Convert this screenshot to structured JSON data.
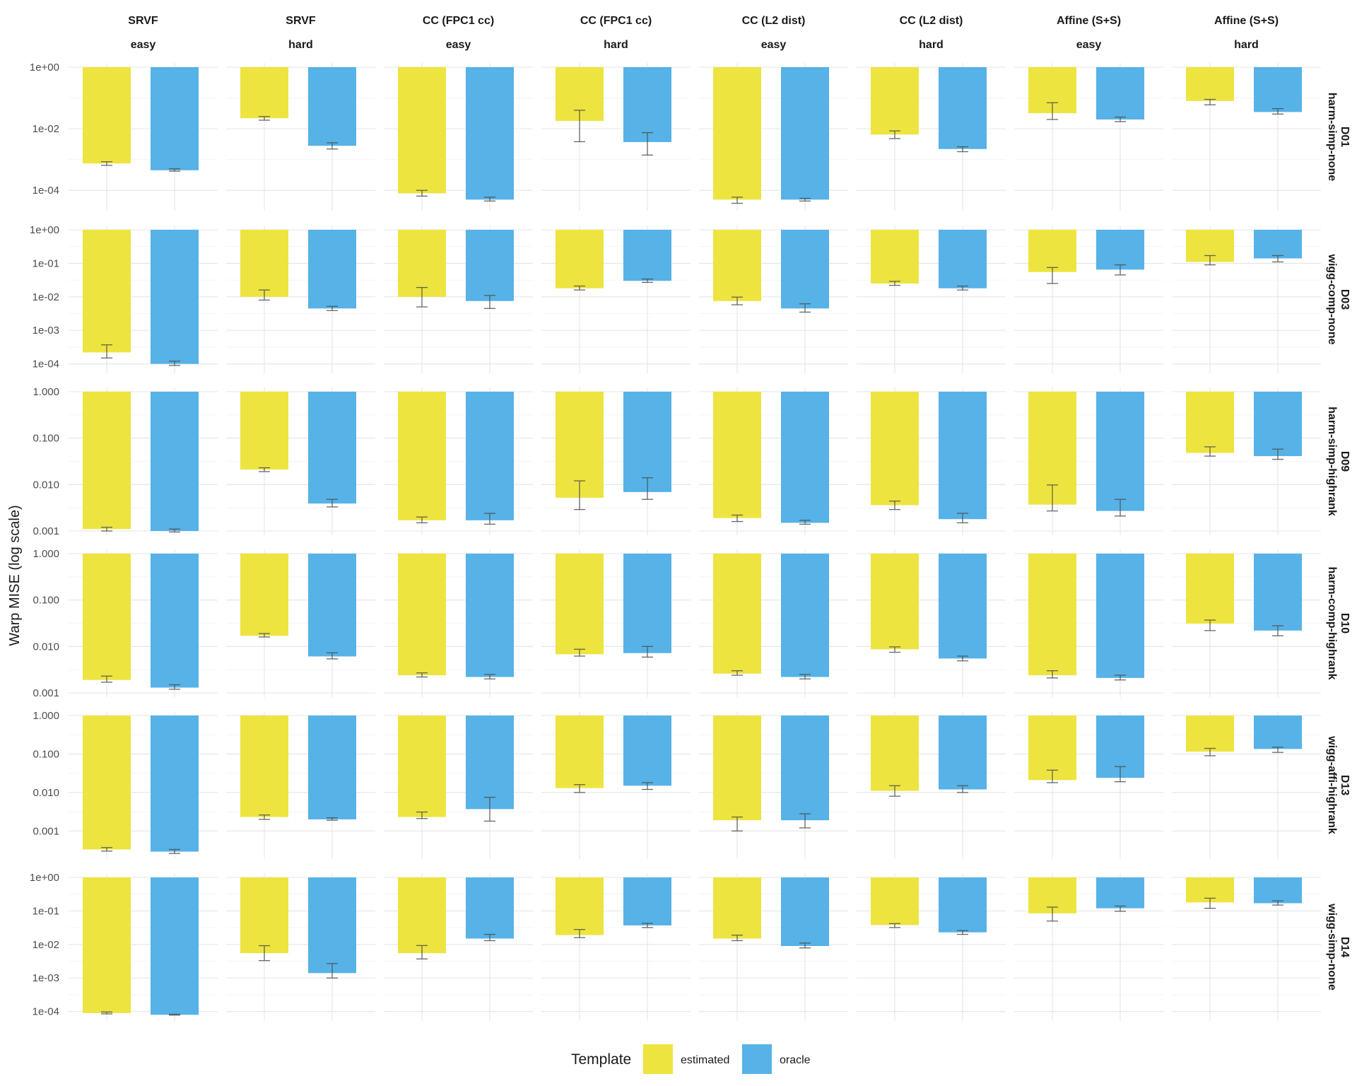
{
  "chart_data": {
    "type": "bar",
    "ylabel": "Warp MISE (log scale)",
    "yscale": "log",
    "grid": true,
    "legend": {
      "title": "Template",
      "position": "bottom",
      "entries": [
        {
          "name": "estimated",
          "color": "#EDE43F"
        },
        {
          "name": "oracle",
          "color": "#56B2E7"
        }
      ]
    },
    "columns": [
      {
        "method": "SRVF",
        "difficulty": "easy"
      },
      {
        "method": "SRVF",
        "difficulty": "hard"
      },
      {
        "method": "CC (FPC1 cc)",
        "difficulty": "easy"
      },
      {
        "method": "CC (FPC1 cc)",
        "difficulty": "hard"
      },
      {
        "method": "CC (L2 dist)",
        "difficulty": "easy"
      },
      {
        "method": "CC (L2 dist)",
        "difficulty": "hard"
      },
      {
        "method": "Affine (S+S)",
        "difficulty": "easy"
      },
      {
        "method": "Affine (S+S)",
        "difficulty": "hard"
      }
    ],
    "rows": [
      {
        "id": "D01",
        "label": "harm-simp-none",
        "ylim": [
          3e-05,
          1
        ],
        "ticks": [
          1,
          0.01,
          0.0001
        ],
        "tick_labels": [
          "1e+00",
          "1e-02",
          "1e-04"
        ],
        "estimated": [
          0.00075,
          0.022,
          8e-05,
          0.018,
          5e-05,
          0.0065,
          0.032,
          0.08
        ],
        "estimated_err": [
          [
            0.00065,
            0.00085
          ],
          [
            0.019,
            0.025
          ],
          [
            6.5e-05,
            0.0001
          ],
          [
            0.0038,
            0.04
          ],
          [
            3.8e-05,
            6e-05
          ],
          [
            0.0048,
            0.0085
          ],
          [
            0.02,
            0.07
          ],
          [
            0.06,
            0.09
          ]
        ],
        "oracle": [
          0.00045,
          0.0028,
          5e-05,
          0.0037,
          5e-05,
          0.0022,
          0.02,
          0.035
        ],
        "oracle_err": [
          [
            0.00042,
            0.0005
          ],
          [
            0.0022,
            0.0035
          ],
          [
            4.5e-05,
            6e-05
          ],
          [
            0.0014,
            0.0075
          ],
          [
            4.5e-05,
            5.5e-05
          ],
          [
            0.0018,
            0.0026
          ],
          [
            0.017,
            0.024
          ],
          [
            0.03,
            0.045
          ]
        ]
      },
      {
        "id": "D03",
        "label": "wigg-comp-none",
        "ylim": [
          7e-05,
          1
        ],
        "ticks": [
          1,
          0.1,
          0.01,
          0.001,
          0.0001
        ],
        "tick_labels": [
          "1e+00",
          "1e-01",
          "1e-02",
          "1e-03",
          "1e-04"
        ],
        "estimated": [
          0.00022,
          0.01,
          0.01,
          0.018,
          0.0075,
          0.025,
          0.055,
          0.11
        ],
        "estimated_err": [
          [
            0.00015,
            0.00037
          ],
          [
            0.008,
            0.016
          ],
          [
            0.005,
            0.019
          ],
          [
            0.016,
            0.021
          ],
          [
            0.0058,
            0.0098
          ],
          [
            0.022,
            0.029
          ],
          [
            0.025,
            0.075
          ],
          [
            0.09,
            0.17
          ]
        ],
        "oracle": [
          0.0001,
          0.0045,
          0.0075,
          0.03,
          0.0045,
          0.018,
          0.065,
          0.14
        ],
        "oracle_err": [
          [
            9e-05,
            0.00012
          ],
          [
            0.0039,
            0.0052
          ],
          [
            0.0045,
            0.011
          ],
          [
            0.027,
            0.034
          ],
          [
            0.0035,
            0.0062
          ],
          [
            0.016,
            0.021
          ],
          [
            0.045,
            0.09
          ],
          [
            0.11,
            0.17
          ]
        ]
      },
      {
        "id": "D09",
        "label": "harm-simp-highrank",
        "ylim": [
          0.001,
          1
        ],
        "ticks": [
          1,
          0.1,
          0.01,
          0.001
        ],
        "tick_labels": [
          "1.000",
          "0.100",
          "0.010",
          "0.001"
        ],
        "estimated": [
          0.0011,
          0.021,
          0.0017,
          0.0052,
          0.0019,
          0.0036,
          0.0037,
          0.048
        ],
        "estimated_err": [
          [
            0.001,
            0.0012
          ],
          [
            0.019,
            0.023
          ],
          [
            0.0015,
            0.002
          ],
          [
            0.0029,
            0.012
          ],
          [
            0.0016,
            0.0022
          ],
          [
            0.0029,
            0.0044
          ],
          [
            0.0027,
            0.0098
          ],
          [
            0.041,
            0.065
          ]
        ],
        "oracle": [
          0.001,
          0.0039,
          0.0017,
          0.0069,
          0.0015,
          0.0018,
          0.0027,
          0.041
        ],
        "oracle_err": [
          [
            0.00095,
            0.0011
          ],
          [
            0.0033,
            0.0048
          ],
          [
            0.0014,
            0.0024
          ],
          [
            0.0048,
            0.014
          ],
          [
            0.0014,
            0.0017
          ],
          [
            0.0015,
            0.0024
          ],
          [
            0.0021,
            0.0048
          ],
          [
            0.035,
            0.058
          ]
        ]
      },
      {
        "id": "D10",
        "label": "harm-comp-highrank",
        "ylim": [
          0.001,
          1
        ],
        "ticks": [
          1,
          0.1,
          0.01,
          0.001
        ],
        "tick_labels": [
          "1.000",
          "0.100",
          "0.010",
          "0.001"
        ],
        "estimated": [
          0.0019,
          0.017,
          0.0024,
          0.0068,
          0.0026,
          0.0087,
          0.0024,
          0.031
        ],
        "estimated_err": [
          [
            0.0017,
            0.0023
          ],
          [
            0.016,
            0.019
          ],
          [
            0.0022,
            0.0027
          ],
          [
            0.0062,
            0.0087
          ],
          [
            0.0024,
            0.003
          ],
          [
            0.0075,
            0.0098
          ],
          [
            0.0021,
            0.003
          ],
          [
            0.022,
            0.037
          ]
        ],
        "oracle": [
          0.0013,
          0.0061,
          0.0022,
          0.0072,
          0.0022,
          0.0055,
          0.0021,
          0.022
        ],
        "oracle_err": [
          [
            0.0012,
            0.0015
          ],
          [
            0.0054,
            0.0073
          ],
          [
            0.002,
            0.0025
          ],
          [
            0.0059,
            0.01
          ],
          [
            0.002,
            0.0025
          ],
          [
            0.0049,
            0.0062
          ],
          [
            0.0019,
            0.0024
          ],
          [
            0.017,
            0.028
          ]
        ]
      },
      {
        "id": "D13",
        "label": "wigg-affi-highrank",
        "ylim": [
          0.00024,
          1
        ],
        "ticks": [
          1,
          0.1,
          0.01,
          0.001
        ],
        "tick_labels": [
          "1.000",
          "0.100",
          "0.010",
          "0.001"
        ],
        "estimated": [
          0.00033,
          0.0023,
          0.0023,
          0.013,
          0.0019,
          0.011,
          0.021,
          0.115
        ],
        "estimated_err": [
          [
            0.0003,
            0.00037
          ],
          [
            0.002,
            0.0026
          ],
          [
            0.0021,
            0.0031
          ],
          [
            0.01,
            0.016
          ],
          [
            0.001,
            0.0023
          ],
          [
            0.008,
            0.015
          ],
          [
            0.018,
            0.038
          ],
          [
            0.09,
            0.14
          ]
        ],
        "oracle": [
          0.00029,
          0.002,
          0.0037,
          0.015,
          0.0019,
          0.012,
          0.024,
          0.135
        ],
        "oracle_err": [
          [
            0.00026,
            0.00033
          ],
          [
            0.0019,
            0.0022
          ],
          [
            0.0018,
            0.0075
          ],
          [
            0.012,
            0.018
          ],
          [
            0.0012,
            0.0028
          ],
          [
            0.01,
            0.015
          ],
          [
            0.019,
            0.047
          ],
          [
            0.11,
            0.15
          ]
        ]
      },
      {
        "id": "D14",
        "label": "wigg-simp-none",
        "ylim": [
          7e-05,
          1
        ],
        "ticks": [
          1,
          0.1,
          0.01,
          0.001,
          0.0001
        ],
        "tick_labels": [
          "1e+00",
          "1e-01",
          "1e-02",
          "1e-03",
          "1e-04"
        ],
        "estimated": [
          9e-05,
          0.0055,
          0.0055,
          0.019,
          0.015,
          0.038,
          0.085,
          0.18
        ],
        "estimated_err": [
          [
            8.5e-05,
            9.7e-05
          ],
          [
            0.0033,
            0.0092
          ],
          [
            0.0037,
            0.0093
          ],
          [
            0.016,
            0.028
          ],
          [
            0.013,
            0.019
          ],
          [
            0.032,
            0.042
          ],
          [
            0.05,
            0.13
          ],
          [
            0.12,
            0.24
          ]
        ],
        "oracle": [
          8e-05,
          0.0014,
          0.015,
          0.037,
          0.009,
          0.023,
          0.12,
          0.17
        ],
        "oracle_err": [
          [
            7.8e-05,
            8.3e-05
          ],
          [
            0.001,
            0.0027
          ],
          [
            0.013,
            0.02
          ],
          [
            0.032,
            0.043
          ],
          [
            0.0079,
            0.011
          ],
          [
            0.02,
            0.026
          ],
          [
            0.098,
            0.14
          ],
          [
            0.15,
            0.2
          ]
        ]
      }
    ]
  }
}
